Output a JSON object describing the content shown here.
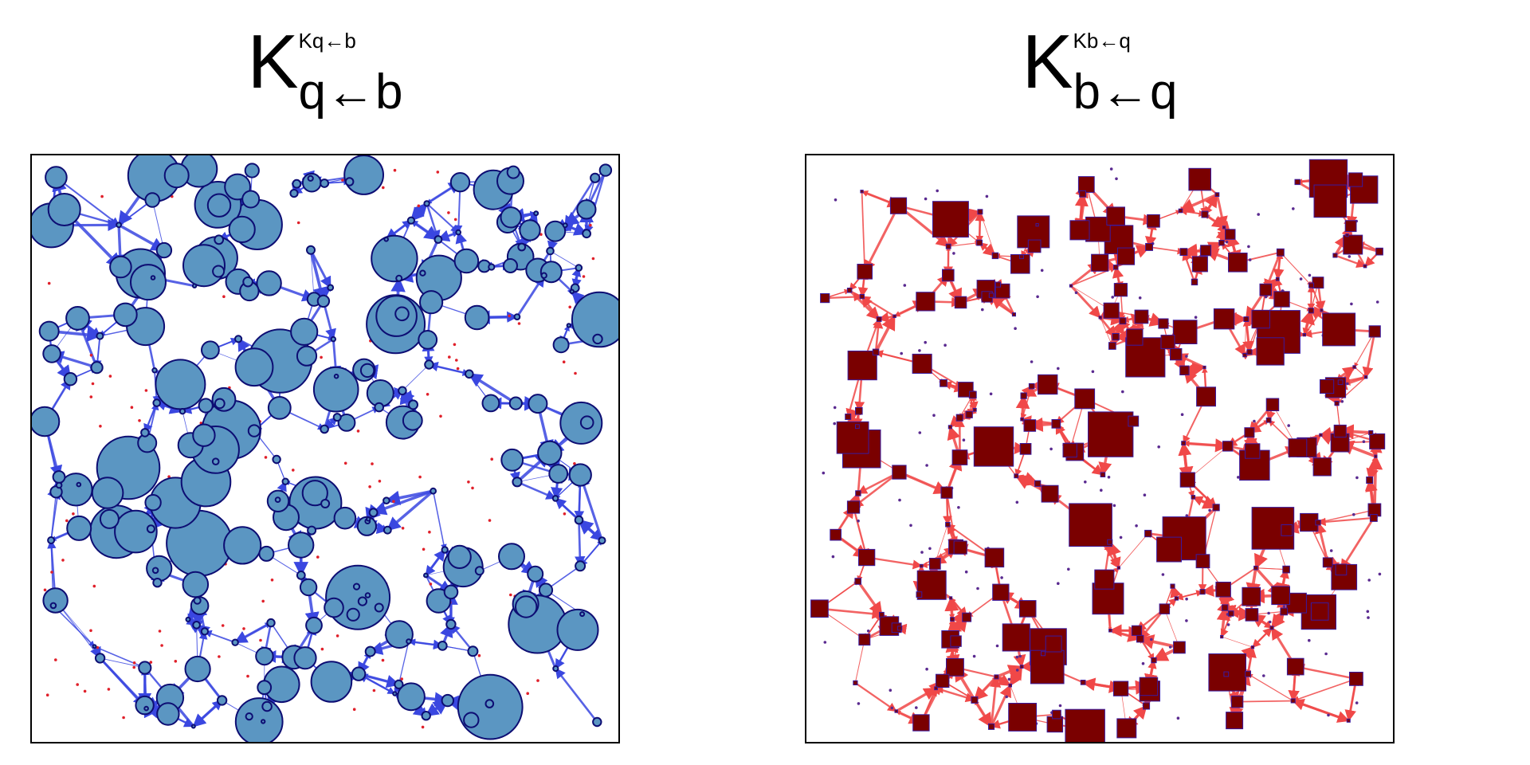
{
  "panels": [
    {
      "title": {
        "main": "K",
        "subscript": "q←b",
        "overlay": "Kq←b"
      },
      "marker": "circle",
      "colors": {
        "fill": "#5b96c2",
        "stroke": "#0d0d73",
        "edge": "#3a47e0",
        "dot": "#e0202a"
      }
    },
    {
      "title": {
        "main": "K",
        "subscript": "b←q",
        "overlay": "Kb←q"
      },
      "marker": "square",
      "colors": {
        "fill": "#7a0000",
        "stroke": "#3a1aa0",
        "edge": "#f04848",
        "dot": "#5a2a90"
      }
    }
  ]
}
